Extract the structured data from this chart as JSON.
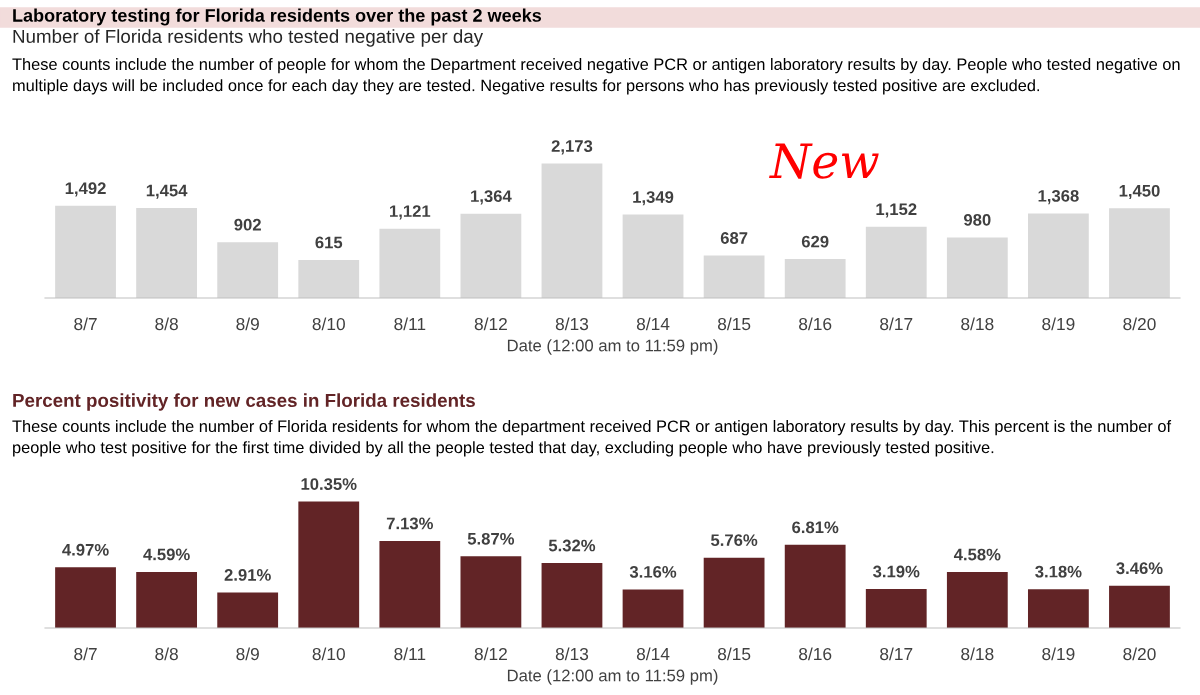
{
  "chart_data": [
    {
      "type": "bar",
      "title": "Laboratory testing for Florida residents over the past 2 weeks",
      "subtitle": "Number of Florida residents who tested negative per day",
      "annotations": [
        "These counts include the number of people for whom the Department received negative PCR or antigen laboratory results by day. People who tested negative on\nmultiple days will be included once for each day they are tested. Negative results for persons who has previously tested positive are excluded.",
        "New"
      ],
      "xlabel": "Date (12:00 am to 11:59 pm)",
      "categories": [
        "8/7",
        "8/8",
        "8/9",
        "8/10",
        "8/11",
        "8/12",
        "8/13",
        "8/14",
        "8/15",
        "8/16",
        "8/17",
        "8/18",
        "8/19",
        "8/20"
      ],
      "values": [
        1492,
        1454,
        902,
        615,
        1121,
        1364,
        2173,
        1349,
        687,
        629,
        1152,
        980,
        1368,
        1450
      ],
      "value_labels": [
        "1,492",
        "1,454",
        "902",
        "615",
        "1,121",
        "1,364",
        "2,173",
        "1,349",
        "687",
        "629",
        "1,152",
        "980",
        "1,368",
        "1,450"
      ],
      "color": "#d9d9d9",
      "tick_labels": "x"
    },
    {
      "type": "bar",
      "subtitle": "Percent positivity for new cases in Florida residents",
      "annotations": [
        "These counts include the number of Florida residents for whom the department received PCR or antigen laboratory results by day. This percent is the number of\npeople who test positive for the first time divided by all the people tested that day, excluding people who have previously tested positive."
      ],
      "xlabel": "Date (12:00 am to 11:59 pm)",
      "categories": [
        "8/7",
        "8/8",
        "8/9",
        "8/10",
        "8/11",
        "8/12",
        "8/13",
        "8/14",
        "8/15",
        "8/16",
        "8/17",
        "8/18",
        "8/19",
        "8/20"
      ],
      "values": [
        4.97,
        4.59,
        2.91,
        10.35,
        7.13,
        5.87,
        5.32,
        3.16,
        5.76,
        6.81,
        3.19,
        4.58,
        3.18,
        3.46
      ],
      "value_labels": [
        "4.97%",
        "4.59%",
        "2.91%",
        "10.35%",
        "7.13%",
        "5.87%",
        "5.32%",
        "3.16%",
        "5.76%",
        "6.81%",
        "3.19%",
        "4.58%",
        "3.18%",
        "3.46%"
      ],
      "color": "#622426",
      "tick_labels": "x"
    }
  ]
}
